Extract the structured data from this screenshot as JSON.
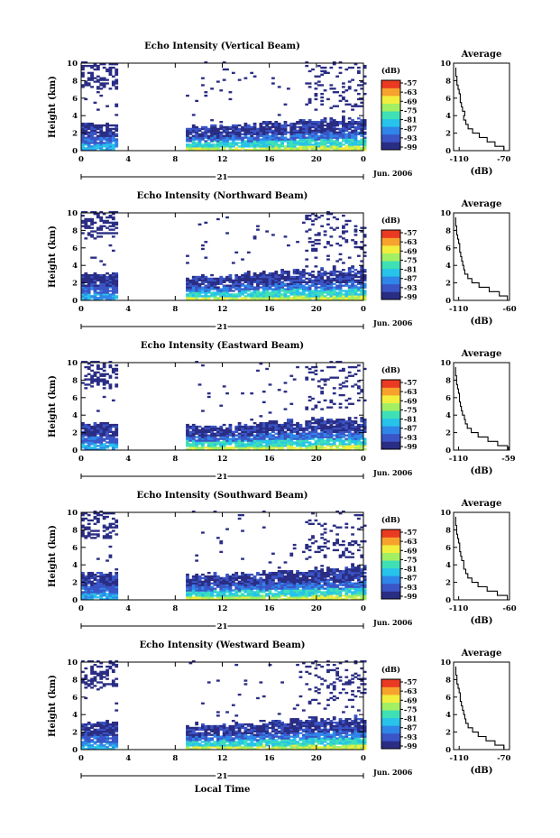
{
  "colors": {
    "scale": [
      "#2a2d84",
      "#3a55c6",
      "#2f86e8",
      "#27c3ea",
      "#3fe0b6",
      "#a2ef63",
      "#f2ee3d",
      "#f7a22c",
      "#ea3a22"
    ],
    "line": "#000000"
  },
  "chart_data": [
    {
      "type": "heatmap",
      "title": "Echo Intensity (Vertical Beam)",
      "ylabel": "Height (km)",
      "x_ticks": [
        "0",
        "4",
        "8",
        "12",
        "16",
        "20",
        "0"
      ],
      "y_ticks": [
        "0",
        "2",
        "4",
        "6",
        "8",
        "10"
      ],
      "xlim": [
        0,
        24
      ],
      "ylim": [
        0,
        10
      ],
      "date_day": "21",
      "date_month": "Jun. 2006",
      "colorbar": {
        "label": "(dB)",
        "ticks": [
          "-57",
          "-63",
          "-69",
          "-75",
          "-81",
          "-87",
          "-93",
          "-99"
        ]
      },
      "profile": {
        "title": "Average",
        "xlabel": "(dB)",
        "x_ticks": [
          "-110",
          "-70"
        ],
        "xlim": [
          -115,
          -65
        ],
        "heights": [
          0,
          0.5,
          1,
          1.5,
          2,
          2.5,
          3,
          3.5,
          4,
          4.5,
          5,
          5.5,
          6,
          6.5,
          7,
          7.5,
          8,
          8.5,
          9
        ],
        "values": [
          -70,
          -78,
          -85,
          -92,
          -98,
          -102,
          -104,
          -106,
          -105,
          -107,
          -108,
          -109,
          -109,
          -110,
          -111,
          -112,
          -112,
          -113,
          -113
        ]
      }
    },
    {
      "type": "heatmap",
      "title": "Echo Intensity (Northward Beam)",
      "ylabel": "Height (km)",
      "x_ticks": [
        "0",
        "4",
        "8",
        "12",
        "16",
        "20",
        "0"
      ],
      "y_ticks": [
        "0",
        "2",
        "4",
        "6",
        "8",
        "10"
      ],
      "xlim": [
        0,
        24
      ],
      "ylim": [
        0,
        10
      ],
      "date_day": "21",
      "date_month": "Jun. 2006",
      "colorbar": {
        "label": "(dB)",
        "ticks": [
          "-57",
          "-63",
          "-69",
          "-75",
          "-81",
          "-87",
          "-93",
          "-99"
        ]
      },
      "profile": {
        "title": "Average",
        "xlabel": "(dB)",
        "x_ticks": [
          "-110",
          "-60"
        ],
        "xlim": [
          -115,
          -60
        ],
        "heights": [
          0,
          0.5,
          1,
          1.5,
          2,
          2.5,
          3,
          3.5,
          4,
          4.5,
          5,
          5.5,
          6,
          6.5,
          7,
          7.5,
          8,
          8.5,
          9
        ],
        "values": [
          -62,
          -70,
          -80,
          -90,
          -97,
          -101,
          -104,
          -105,
          -106,
          -107,
          -108,
          -109,
          -109,
          -110,
          -111,
          -112,
          -112,
          -113,
          -113
        ]
      }
    },
    {
      "type": "heatmap",
      "title": "Echo Intensity (Eastward Beam)",
      "ylabel": "Height (km)",
      "x_ticks": [
        "0",
        "4",
        "8",
        "12",
        "16",
        "20",
        "0"
      ],
      "y_ticks": [
        "0",
        "2",
        "4",
        "6",
        "8",
        "10"
      ],
      "xlim": [
        0,
        24
      ],
      "ylim": [
        0,
        10
      ],
      "date_day": "21",
      "date_month": "Jun. 2006",
      "colorbar": {
        "label": "(dB)",
        "ticks": [
          "-57",
          "-63",
          "-69",
          "-75",
          "-81",
          "-87",
          "-93",
          "-99"
        ]
      },
      "profile": {
        "title": "Average",
        "xlabel": "(dB)",
        "x_ticks": [
          "-110",
          "-59"
        ],
        "xlim": [
          -115,
          -58
        ],
        "heights": [
          0,
          0.5,
          1,
          1.5,
          2,
          2.5,
          3,
          3.5,
          4,
          4.5,
          5,
          5.5,
          6,
          6.5,
          7,
          7.5,
          8,
          8.5,
          9
        ],
        "values": [
          -60,
          -70,
          -80,
          -90,
          -97,
          -101,
          -103,
          -104,
          -106,
          -107,
          -108,
          -109,
          -109,
          -110,
          -111,
          -112,
          -112,
          -113,
          -113
        ]
      }
    },
    {
      "type": "heatmap",
      "title": "Echo Intensity (Southward Beam)",
      "ylabel": "Height (km)",
      "x_ticks": [
        "0",
        "4",
        "8",
        "12",
        "16",
        "20",
        "0"
      ],
      "y_ticks": [
        "0",
        "2",
        "4",
        "6",
        "8",
        "10"
      ],
      "xlim": [
        0,
        24
      ],
      "ylim": [
        0,
        10
      ],
      "date_day": "21",
      "date_month": "Jun. 2006",
      "colorbar": {
        "label": "(dB)",
        "ticks": [
          "-57",
          "-63",
          "-69",
          "-75",
          "-81",
          "-87",
          "-93",
          "-99"
        ]
      },
      "profile": {
        "title": "Average",
        "xlabel": "(dB)",
        "x_ticks": [
          "-110",
          "-60"
        ],
        "xlim": [
          -115,
          -60
        ],
        "heights": [
          0,
          0.5,
          1,
          1.5,
          2,
          2.5,
          3,
          3.5,
          4,
          4.5,
          5,
          5.5,
          6,
          6.5,
          7,
          7.5,
          8,
          8.5,
          9
        ],
        "values": [
          -62,
          -72,
          -82,
          -91,
          -97,
          -101,
          -103,
          -105,
          -105,
          -107,
          -108,
          -109,
          -109,
          -110,
          -111,
          -112,
          -112,
          -113,
          -113
        ]
      }
    },
    {
      "type": "heatmap",
      "title": "Echo Intensity (Westward Beam)",
      "ylabel": "Height (km)",
      "x_ticks": [
        "0",
        "4",
        "8",
        "12",
        "16",
        "20",
        "0"
      ],
      "y_ticks": [
        "0",
        "2",
        "4",
        "6",
        "8",
        "10"
      ],
      "xlim": [
        0,
        24
      ],
      "ylim": [
        0,
        10
      ],
      "date_day": "21",
      "date_month": "Jun. 2006",
      "colorbar": {
        "label": "(dB)",
        "ticks": [
          "-57",
          "-63",
          "-69",
          "-75",
          "-81",
          "-87",
          "-93",
          "-99"
        ]
      },
      "profile": {
        "title": "Average",
        "xlabel": "(dB)",
        "x_ticks": [
          "-110",
          "-70"
        ],
        "xlim": [
          -115,
          -65
        ],
        "heights": [
          0,
          0.5,
          1,
          1.5,
          2,
          2.5,
          3,
          3.5,
          4,
          4.5,
          5,
          5.5,
          6,
          6.5,
          7,
          7.5,
          8,
          8.5,
          9
        ],
        "values": [
          -70,
          -78,
          -86,
          -93,
          -98,
          -102,
          -104,
          -105,
          -106,
          -107,
          -108,
          -109,
          -109,
          -110,
          -111,
          -112,
          -112,
          -113,
          -113
        ]
      }
    }
  ],
  "xlabel": "Local Time"
}
